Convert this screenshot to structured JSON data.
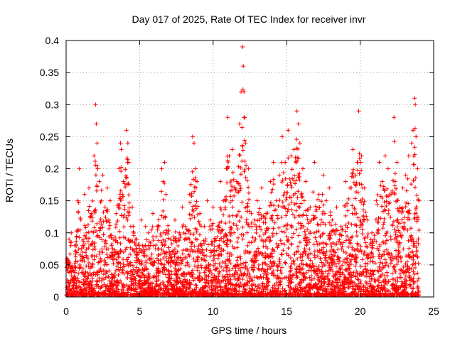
{
  "chart_data": {
    "type": "scatter",
    "title": "Day 017 of 2025, Rate Of TEC Index for receiver invr",
    "xlabel": "GPS time / hours",
    "ylabel": "ROTI / TECUs",
    "xlim": [
      0,
      25
    ],
    "ylim": [
      0,
      0.4
    ],
    "x_ticks": [
      0,
      5,
      10,
      15,
      20,
      25
    ],
    "x_tick_labels": [
      "0",
      "5",
      "10",
      "15",
      "20",
      "25"
    ],
    "y_ticks": [
      0,
      0.05,
      0.1,
      0.15,
      0.2,
      0.25,
      0.3,
      0.35,
      0.4
    ],
    "y_tick_labels": [
      "0",
      "0.05",
      "0.1",
      "0.15",
      "0.2",
      "0.25",
      "0.3",
      "0.35",
      "0.4"
    ],
    "grid": true,
    "marker": "+",
    "marker_color": "#ff0000",
    "series": [
      {
        "name": "ROTI",
        "x": [
          0.05,
          0.2,
          0.35,
          0.5,
          0.6,
          0.8,
          0.9,
          1.0,
          1.1,
          1.25,
          1.4,
          1.55,
          1.7,
          1.9,
          2.0,
          2.05,
          2.1,
          2.15,
          2.25,
          2.5,
          2.65,
          2.8,
          2.9,
          3.0,
          3.2,
          3.4,
          3.6,
          3.7,
          3.75,
          3.9,
          4.1,
          4.2,
          4.25,
          4.4,
          4.5,
          4.8,
          5.1,
          5.2,
          5.4,
          5.6,
          5.9,
          6.2,
          6.5,
          6.6,
          6.7,
          6.8,
          7.1,
          7.4,
          7.7,
          7.9,
          8.1,
          8.4,
          8.6,
          8.7,
          8.8,
          8.9,
          9.1,
          9.4,
          9.6,
          9.8,
          10.0,
          10.3,
          10.5,
          10.7,
          10.9,
          11.0,
          11.1,
          11.3,
          11.6,
          11.8,
          11.9,
          12.0,
          12.05,
          12.1,
          12.15,
          12.2,
          12.4,
          12.6,
          12.8,
          13.0,
          13.3,
          13.6,
          13.9,
          14.1,
          14.3,
          14.5,
          14.7,
          14.9,
          15.1,
          15.3,
          15.5,
          15.7,
          15.8,
          15.9,
          16.1,
          16.3,
          16.6,
          16.9,
          17.2,
          17.5,
          17.7,
          17.9,
          18.1,
          18.4,
          18.7,
          19.0,
          19.3,
          19.5,
          19.7,
          19.8,
          19.9,
          20.1,
          20.3,
          20.5,
          20.8,
          21.1,
          21.3,
          21.5,
          21.7,
          21.9,
          22.1,
          22.3,
          22.5,
          22.7,
          22.9,
          23.1,
          23.3,
          23.5,
          23.6,
          23.7,
          23.75,
          23.8,
          23.9,
          24.0
        ],
        "y": [
          0.06,
          0.09,
          0.1,
          0.04,
          0.08,
          0.15,
          0.2,
          0.12,
          0.07,
          0.16,
          0.1,
          0.17,
          0.13,
          0.22,
          0.3,
          0.27,
          0.24,
          0.2,
          0.18,
          0.19,
          0.14,
          0.17,
          0.12,
          0.15,
          0.09,
          0.13,
          0.2,
          0.24,
          0.23,
          0.18,
          0.26,
          0.24,
          0.21,
          0.11,
          0.14,
          0.09,
          0.12,
          0.08,
          0.11,
          0.1,
          0.13,
          0.11,
          0.2,
          0.18,
          0.21,
          0.16,
          0.09,
          0.12,
          0.1,
          0.14,
          0.11,
          0.16,
          0.25,
          0.24,
          0.2,
          0.18,
          0.13,
          0.11,
          0.15,
          0.12,
          0.14,
          0.11,
          0.18,
          0.15,
          0.2,
          0.28,
          0.22,
          0.23,
          0.18,
          0.27,
          0.32,
          0.39,
          0.36,
          0.32,
          0.28,
          0.24,
          0.2,
          0.13,
          0.12,
          0.15,
          0.17,
          0.13,
          0.18,
          0.21,
          0.15,
          0.19,
          0.25,
          0.21,
          0.26,
          0.22,
          0.23,
          0.29,
          0.27,
          0.24,
          0.2,
          0.18,
          0.14,
          0.21,
          0.16,
          0.19,
          0.15,
          0.17,
          0.12,
          0.14,
          0.11,
          0.18,
          0.17,
          0.23,
          0.19,
          0.21,
          0.29,
          0.22,
          0.17,
          0.12,
          0.1,
          0.15,
          0.21,
          0.18,
          0.22,
          0.2,
          0.16,
          0.28,
          0.21,
          0.14,
          0.17,
          0.19,
          0.22,
          0.24,
          0.26,
          0.31,
          0.3,
          0.25,
          0.2,
          0.15
        ]
      }
    ]
  }
}
